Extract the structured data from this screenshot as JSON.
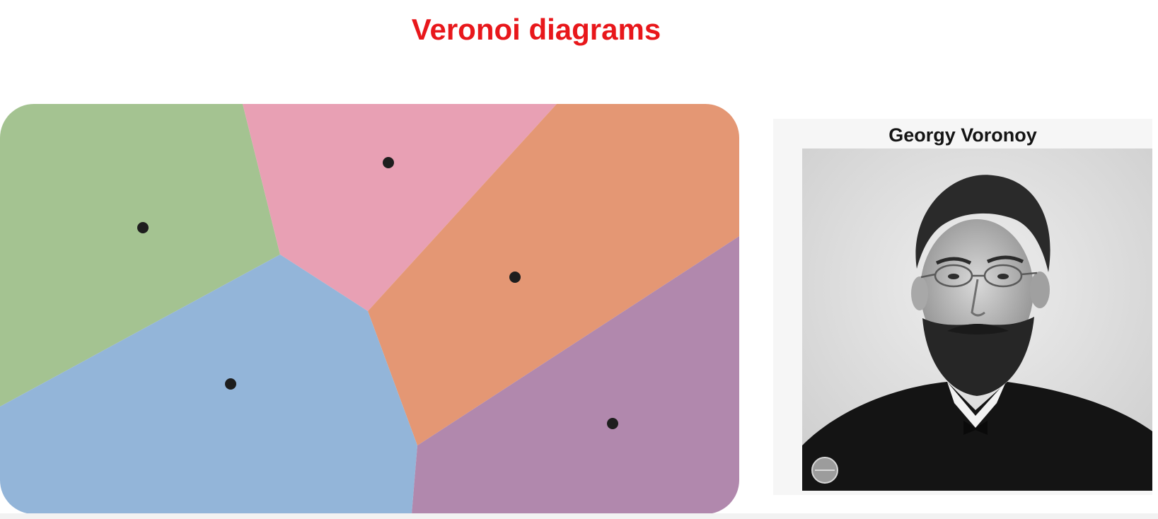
{
  "slide": {
    "title": "Veronoi diagrams"
  },
  "diagram": {
    "cells": [
      {
        "name": "green",
        "color": "#a4c391"
      },
      {
        "name": "pink",
        "color": "#e8a0b4"
      },
      {
        "name": "orange",
        "color": "#e49774"
      },
      {
        "name": "blue",
        "color": "#93b5d9"
      },
      {
        "name": "purple",
        "color": "#b188ad"
      }
    ],
    "seed_color": "#1e1e1e"
  },
  "portrait": {
    "caption": "Georgy Voronoy"
  }
}
